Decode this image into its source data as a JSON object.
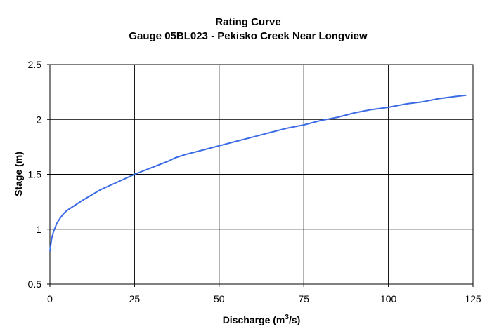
{
  "chart_data": {
    "type": "line",
    "title": "Rating Curve",
    "subtitle": "Gauge 05BL023 - Pekisko Creek Near Longview",
    "xlabel": "Discharge (m",
    "xlabel_sup": "3",
    "xlabel_tail": "/s)",
    "ylabel": "Stage (m)",
    "xlim": [
      0,
      125
    ],
    "ylim": [
      0.5,
      2.5
    ],
    "xticks": [
      "0",
      "25",
      "50",
      "75",
      "100",
      "125"
    ],
    "yticks": [
      "0.5",
      "1",
      "1.5",
      "2",
      "2.5"
    ],
    "grid": true,
    "series": [
      {
        "color": "#3c6be6",
        "x": [
          0,
          0.2,
          0.5,
          1,
          2,
          3,
          4,
          5,
          7,
          10,
          15,
          20,
          25,
          30,
          35,
          37,
          40,
          45,
          50,
          55,
          60,
          65,
          70,
          75,
          80,
          85,
          90,
          95,
          100,
          105,
          110,
          115,
          120,
          123
        ],
        "y": [
          0.8,
          0.85,
          0.91,
          0.97,
          1.05,
          1.1,
          1.14,
          1.17,
          1.21,
          1.27,
          1.36,
          1.43,
          1.5,
          1.56,
          1.62,
          1.65,
          1.68,
          1.72,
          1.76,
          1.8,
          1.84,
          1.88,
          1.92,
          1.95,
          1.99,
          2.02,
          2.06,
          2.09,
          2.11,
          2.14,
          2.16,
          2.19,
          2.21,
          2.22
        ]
      }
    ]
  }
}
